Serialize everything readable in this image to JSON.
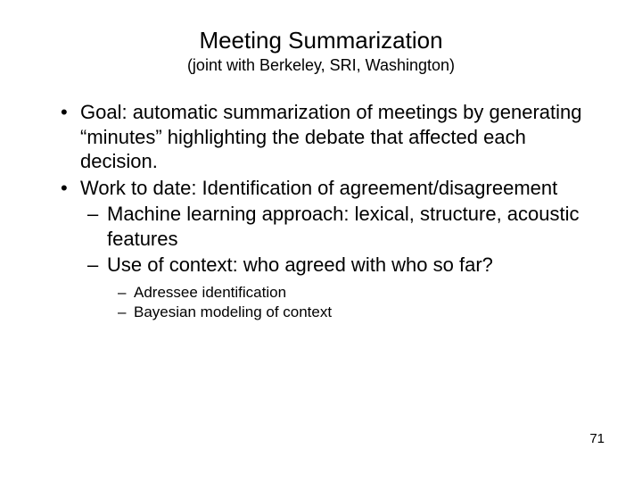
{
  "colors": {
    "bg": "#ffffff",
    "text": "#000000"
  },
  "typography": {
    "title_size": 26,
    "subtitle_size": 18,
    "body_size": 22,
    "sub_body_size": 17,
    "family": "Arial"
  },
  "title": "Meeting Summarization",
  "subtitle": "(joint with Berkeley, SRI, Washington)",
  "bullets": [
    {
      "text": "Goal: automatic summarization of meetings by generating “minutes” highlighting the debate that affected each decision."
    },
    {
      "text": "Work to date: Identification of agreement/disagreement",
      "children": [
        {
          "text": "Machine learning approach: lexical, structure, acoustic features"
        },
        {
          "text": "Use of context: who agreed with who so far?",
          "children": [
            {
              "text": "Adressee identification"
            },
            {
              "text": "Bayesian modeling of context"
            }
          ]
        }
      ]
    }
  ],
  "page_number": "71"
}
